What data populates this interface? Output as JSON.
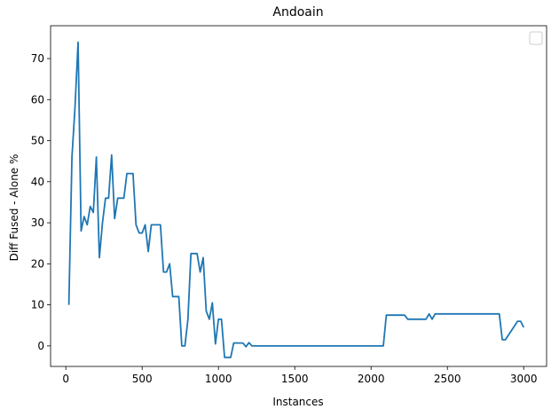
{
  "chart_data": {
    "type": "line",
    "title": "Andoain",
    "xlabel": "Instances",
    "ylabel": "Diff Fused - Alone %",
    "xlim": [
      -100,
      3150
    ],
    "ylim": [
      -5,
      78
    ],
    "xticks": [
      0,
      500,
      1000,
      1500,
      2000,
      2500,
      3000
    ],
    "yticks": [
      0,
      10,
      20,
      30,
      40,
      50,
      60,
      70
    ],
    "grid": false,
    "legend": "top-right",
    "series_color": "#1f77b4",
    "series": [
      {
        "name": "",
        "x": [
          20,
          40,
          60,
          80,
          100,
          120,
          140,
          160,
          180,
          200,
          220,
          240,
          260,
          280,
          300,
          320,
          340,
          360,
          380,
          400,
          420,
          440,
          460,
          480,
          500,
          520,
          540,
          560,
          580,
          600,
          620,
          640,
          660,
          680,
          700,
          720,
          740,
          760,
          780,
          800,
          820,
          840,
          860,
          880,
          900,
          920,
          940,
          960,
          980,
          1000,
          1020,
          1040,
          1060,
          1080,
          1100,
          1120,
          1140,
          1160,
          1180,
          1200,
          1220,
          1300,
          1400,
          1500,
          1600,
          1700,
          1800,
          1900,
          2000,
          2080,
          2100,
          2200,
          2220,
          2240,
          2300,
          2360,
          2380,
          2400,
          2420,
          2500,
          2600,
          2700,
          2820,
          2840,
          2860,
          2880,
          2960,
          2980,
          3000
        ],
        "values": [
          10,
          46,
          58,
          74,
          28,
          31.5,
          29.5,
          34,
          32.5,
          46,
          21.5,
          30,
          36,
          36,
          46.5,
          31,
          36,
          36,
          36,
          42,
          42,
          42,
          29.5,
          27.5,
          27.5,
          29.5,
          23,
          29.5,
          29.5,
          29.5,
          29.5,
          18,
          18,
          20,
          12,
          12,
          12,
          0,
          0,
          6.5,
          22.5,
          22.5,
          22.5,
          18,
          21.5,
          8.5,
          6.5,
          10.5,
          0.5,
          6.5,
          6.5,
          -2.8,
          -2.8,
          -2.8,
          0.7,
          0.7,
          0.7,
          0.7,
          -0.2,
          0.8,
          0,
          0,
          0,
          0,
          0,
          0,
          0,
          0,
          0,
          0,
          7.5,
          7.5,
          7.5,
          6.5,
          6.5,
          6.5,
          7.8,
          6.5,
          7.8,
          7.8,
          7.8,
          7.8,
          7.8,
          7.8,
          1.5,
          1.5,
          6,
          6,
          4.5
        ]
      }
    ]
  }
}
